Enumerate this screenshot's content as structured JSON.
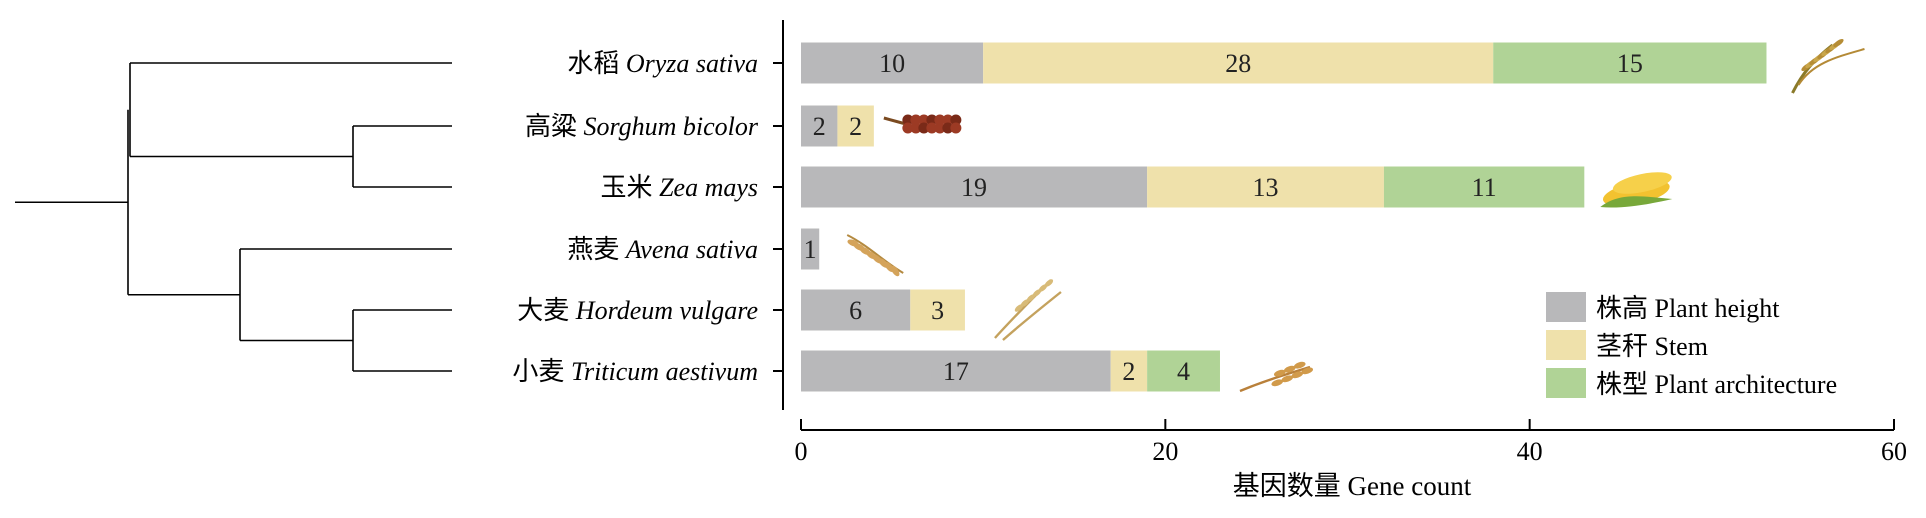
{
  "chart_data": {
    "type": "bar",
    "orientation": "horizontal",
    "stacked": true,
    "xlabel": "基因数量 Gene count",
    "xlim": [
      0,
      60
    ],
    "xticks": [
      0,
      20,
      40,
      60
    ],
    "grid": false,
    "legend_position": "bottom-right",
    "categories": [
      {
        "zh": "水稻",
        "latin": "Oryza sativa"
      },
      {
        "zh": "高粱",
        "latin": "Sorghum bicolor"
      },
      {
        "zh": "玉米",
        "latin": "Zea mays"
      },
      {
        "zh": "燕麦",
        "latin": "Avena sativa"
      },
      {
        "zh": "大麦",
        "latin": "Hordeum vulgare"
      },
      {
        "zh": "小麦",
        "latin": "Triticum aestivum"
      }
    ],
    "series": [
      {
        "name": "株高 Plant height",
        "color": "#b8b8ba",
        "values": [
          10,
          2,
          19,
          1,
          6,
          17
        ]
      },
      {
        "name": "茎秆 Stem",
        "color": "#efe1ab",
        "values": [
          28,
          2,
          13,
          0,
          3,
          2
        ]
      },
      {
        "name": "株型 Plant architecture",
        "color": "#b0d396",
        "values": [
          15,
          0,
          11,
          0,
          0,
          4
        ]
      }
    ],
    "icons": [
      "rice-icon",
      "sorghum-icon",
      "corn-icon",
      "oat-icon",
      "barley-icon",
      "wheat-icon"
    ],
    "phylogeny": "((水稻 Oryza sativa,(高粱 Sorghum bicolor,玉米 Zea mays)),(燕麦 Avena sativa,(大麦 Hordeum vulgare,小麦 Triticum aestivum)))"
  }
}
